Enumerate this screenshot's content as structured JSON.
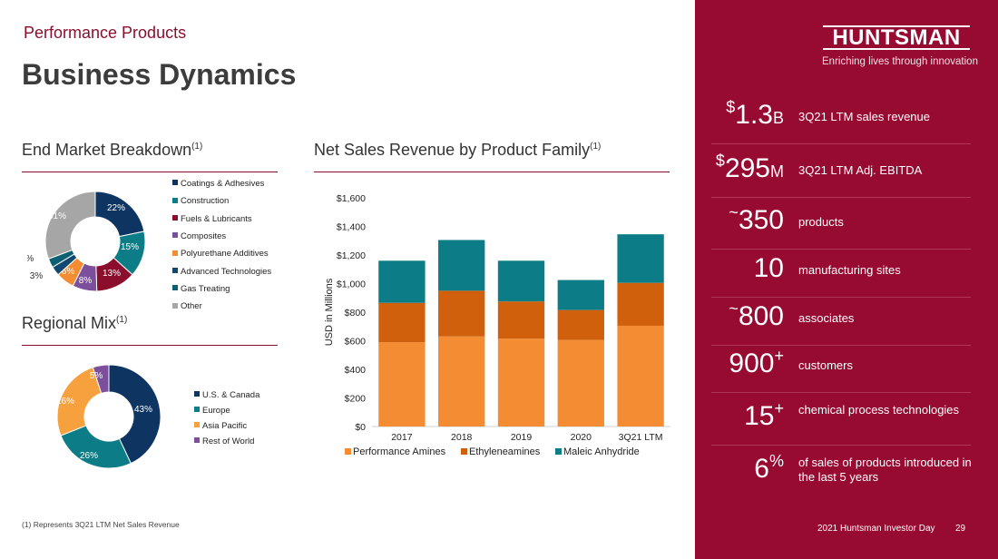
{
  "header": {
    "section": "Performance Products",
    "title": "Business Dynamics"
  },
  "end_market": {
    "title": "End Market Breakdown",
    "note_ref": "(1)",
    "legend": [
      "Coatings & Adhesives",
      "Construction",
      "Fuels & Lubricants",
      "Composites",
      "Polyurethane Additives",
      "Advanced Technologies",
      "Gas Treating",
      "Other"
    ]
  },
  "regional": {
    "title": "Regional Mix",
    "note_ref": "(1)",
    "legend": [
      "U.S. & Canada",
      "Europe",
      "Asia Pacific",
      "Rest of World"
    ]
  },
  "net_sales": {
    "title": "Net Sales Revenue by Product Family",
    "note_ref": "(1)"
  },
  "chart_data": [
    {
      "type": "pie",
      "title": "End Market Breakdown",
      "categories": [
        "Coatings & Adhesives",
        "Construction",
        "Fuels & Lubricants",
        "Composites",
        "Polyurethane Additives",
        "Advanced Technologies",
        "Gas Treating",
        "Other"
      ],
      "values": [
        22,
        15,
        13,
        8,
        6,
        3,
        3,
        31
      ],
      "labels": [
        "22%",
        "15%",
        "13%",
        "8%",
        "6%",
        "3%",
        "3%",
        "31%"
      ],
      "colors": [
        "#0e3561",
        "#0c7d86",
        "#8b0f2d",
        "#7b4f9c",
        "#f38c33",
        "#11486f",
        "#0d5f73",
        "#a6a6a6"
      ]
    },
    {
      "type": "pie",
      "title": "Regional Mix",
      "categories": [
        "U.S. & Canada",
        "Europe",
        "Asia Pacific",
        "Rest of World"
      ],
      "values": [
        43,
        26,
        26,
        5
      ],
      "labels": [
        "43%",
        "26%",
        "26%",
        "5%"
      ],
      "colors": [
        "#0e3561",
        "#0c7d86",
        "#f7a13e",
        "#7b4f9c"
      ]
    },
    {
      "type": "bar",
      "stacked": true,
      "title": "Net Sales Revenue by Product Family",
      "categories": [
        "2017",
        "2018",
        "2019",
        "2020",
        "3Q21 LTM"
      ],
      "series": [
        {
          "name": "Performance Amines",
          "values": [
            590,
            630,
            615,
            605,
            705
          ],
          "color": "#f38c33"
        },
        {
          "name": "Ethyleneamines",
          "values": [
            275,
            320,
            260,
            210,
            300
          ],
          "color": "#d1600d"
        },
        {
          "name": "Maleic Anhydride",
          "values": [
            295,
            355,
            285,
            210,
            340
          ],
          "color": "#0c7d86"
        }
      ],
      "ylabel": "USD in Millions",
      "ylim": [
        0,
        1600
      ],
      "yticks": [
        "$0",
        "$200",
        "$400",
        "$600",
        "$800",
        "$1,000",
        "$1,200",
        "$1,400",
        "$1,600"
      ],
      "legend_position": "bottom"
    }
  ],
  "logo": {
    "text": "HUNTSMAN",
    "tagline": "Enriching lives through innovation"
  },
  "stats": [
    {
      "prefix": "$",
      "value": "1.3",
      "suffix": "B",
      "sup": "",
      "desc": "3Q21 LTM sales revenue"
    },
    {
      "prefix": "$",
      "value": "295",
      "suffix": "M",
      "sup": "",
      "desc": "3Q21 LTM Adj. EBITDA"
    },
    {
      "prefix": "~",
      "value": "350",
      "suffix": "",
      "sup": "",
      "desc": "products"
    },
    {
      "prefix": "",
      "value": "10",
      "suffix": "",
      "sup": "",
      "desc": "manufacturing sites"
    },
    {
      "prefix": "~",
      "value": "800",
      "suffix": "",
      "sup": "",
      "desc": "associates"
    },
    {
      "prefix": "",
      "value": "900",
      "suffix": "",
      "sup": "+",
      "desc": "customers"
    },
    {
      "prefix": "",
      "value": "15",
      "suffix": "",
      "sup": "+",
      "desc": "chemical process technologies"
    },
    {
      "prefix": "",
      "value": "6",
      "suffix": "",
      "sup": "%",
      "desc": "of sales of products introduced in the last 5 years"
    }
  ],
  "footnote": "(1) Represents 3Q21 LTM Net Sales Revenue",
  "footer": {
    "text": "2021 Huntsman Investor Day",
    "page": "29"
  }
}
